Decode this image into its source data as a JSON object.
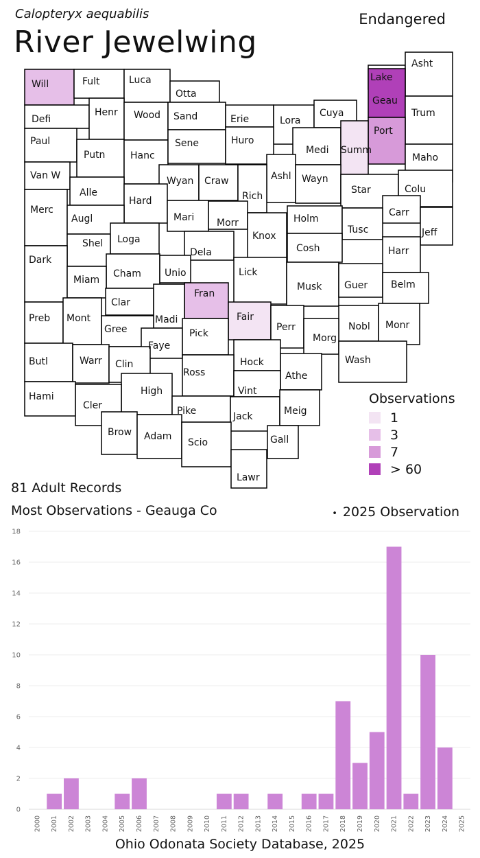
{
  "header": {
    "scientific_name": "Calopteryx aequabilis",
    "common_name": "River Jewelwing",
    "status": "Endangered"
  },
  "colors": {
    "obs_1": "#f3e4f3",
    "obs_3": "#e6bfe8",
    "obs_7": "#d79ad9",
    "obs_60": "#b040b8",
    "bar": "#cc85d6",
    "county_default": "#ffffff"
  },
  "legend": {
    "title": "Observations",
    "items": [
      {
        "label": "1",
        "color": "#f3e4f3"
      },
      {
        "label": "3",
        "color": "#e6bfe8"
      },
      {
        "label": "7",
        "color": "#d79ad9"
      },
      {
        "label": "> 60",
        "color": "#b040b8"
      }
    ]
  },
  "map": {
    "counties": [
      {
        "name": "Will",
        "obs": "3"
      },
      {
        "name": "Fult"
      },
      {
        "name": "Luca"
      },
      {
        "name": "Otta"
      },
      {
        "name": "Lake"
      },
      {
        "name": "Asht"
      },
      {
        "name": "Geau",
        "obs": ">60"
      },
      {
        "name": "Defi"
      },
      {
        "name": "Henr"
      },
      {
        "name": "Wood"
      },
      {
        "name": "Sand"
      },
      {
        "name": "Erie"
      },
      {
        "name": "Lora"
      },
      {
        "name": "Cuya"
      },
      {
        "name": "Trum"
      },
      {
        "name": "Port",
        "obs": "7"
      },
      {
        "name": "Paul"
      },
      {
        "name": "Putn"
      },
      {
        "name": "Hanc"
      },
      {
        "name": "Sene"
      },
      {
        "name": "Huro"
      },
      {
        "name": "Medi"
      },
      {
        "name": "Summ",
        "obs": "1"
      },
      {
        "name": "Maho"
      },
      {
        "name": "Van W"
      },
      {
        "name": "Alle"
      },
      {
        "name": "Wyan"
      },
      {
        "name": "Craw"
      },
      {
        "name": "Ashl"
      },
      {
        "name": "Wayn"
      },
      {
        "name": "Star"
      },
      {
        "name": "Colu"
      },
      {
        "name": "Hard"
      },
      {
        "name": "Rich"
      },
      {
        "name": "Merc"
      },
      {
        "name": "Augl"
      },
      {
        "name": "Mari"
      },
      {
        "name": "Morr"
      },
      {
        "name": "Holm"
      },
      {
        "name": "Carr"
      },
      {
        "name": "Tusc"
      },
      {
        "name": "Jeff"
      },
      {
        "name": "Shel"
      },
      {
        "name": "Loga"
      },
      {
        "name": "Knox"
      },
      {
        "name": "Dela"
      },
      {
        "name": "Cosh"
      },
      {
        "name": "Harr"
      },
      {
        "name": "Dark"
      },
      {
        "name": "Cham"
      },
      {
        "name": "Unio"
      },
      {
        "name": "Lick"
      },
      {
        "name": "Miam"
      },
      {
        "name": "Musk"
      },
      {
        "name": "Guer"
      },
      {
        "name": "Belm"
      },
      {
        "name": "Fran",
        "obs": "3"
      },
      {
        "name": "Clar"
      },
      {
        "name": "Fair",
        "obs": "1"
      },
      {
        "name": "Madi"
      },
      {
        "name": "Preb"
      },
      {
        "name": "Mont"
      },
      {
        "name": "Perr"
      },
      {
        "name": "Nobl"
      },
      {
        "name": "Monr"
      },
      {
        "name": "Gree"
      },
      {
        "name": "Faye"
      },
      {
        "name": "Pick"
      },
      {
        "name": "Morg"
      },
      {
        "name": "Butl"
      },
      {
        "name": "Warr"
      },
      {
        "name": "Clin"
      },
      {
        "name": "Hock"
      },
      {
        "name": "Wash"
      },
      {
        "name": "Ross"
      },
      {
        "name": "Athe"
      },
      {
        "name": "Hami"
      },
      {
        "name": "High"
      },
      {
        "name": "Vint"
      },
      {
        "name": "Cler"
      },
      {
        "name": "Pike"
      },
      {
        "name": "Jack"
      },
      {
        "name": "Meig"
      },
      {
        "name": "Brow"
      },
      {
        "name": "Adam"
      },
      {
        "name": "Scio"
      },
      {
        "name": "Gall"
      },
      {
        "name": "Lawr"
      }
    ]
  },
  "summary": {
    "records": "81 Adult Records",
    "most": "Most Observations - Geauga Co",
    "obs_2025_marker": "•",
    "obs_2025_label": "2025  Observation"
  },
  "chart_data": {
    "type": "bar",
    "categories": [
      "2000",
      "2001",
      "2002",
      "2003",
      "2004",
      "2005",
      "2006",
      "2007",
      "2008",
      "2009",
      "2010",
      "2011",
      "2012",
      "2013",
      "2014",
      "2015",
      "2016",
      "2017",
      "2018",
      "2019",
      "2020",
      "2021",
      "2022",
      "2023",
      "2024",
      "2025"
    ],
    "values": [
      0,
      1,
      2,
      0,
      0,
      1,
      2,
      0,
      0,
      0,
      0,
      1,
      1,
      0,
      1,
      0,
      1,
      1,
      7,
      3,
      5,
      17,
      1,
      10,
      4,
      0
    ],
    "ylim": [
      0,
      18
    ],
    "yticks": [
      0,
      2,
      4,
      6,
      8,
      10,
      12,
      14,
      16,
      18
    ],
    "grid": true
  },
  "footer": {
    "source": "Ohio Odonata Society Database, 2025"
  }
}
